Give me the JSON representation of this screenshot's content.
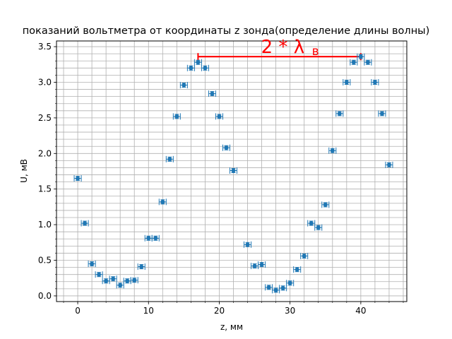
{
  "chart_data": {
    "type": "scatter",
    "title": "показаний вольтметра от координаты z зонда(определение длины волны)",
    "xlabel": "z, мм",
    "ylabel": "U, мВ",
    "xlim": [
      -3,
      46.5
    ],
    "ylim": [
      -0.08,
      3.58
    ],
    "grid": true,
    "minor_grid": true,
    "x_major_ticks": [
      0,
      10,
      20,
      30,
      40
    ],
    "y_major_ticks": [
      0.0,
      0.5,
      1.0,
      1.5,
      2.0,
      2.5,
      3.0,
      3.5
    ],
    "x_tick_labels": [
      "0",
      "10",
      "20",
      "30",
      "40"
    ],
    "y_tick_labels": [
      "0.0",
      "0.5",
      "1.0",
      "1.5",
      "2.0",
      "2.5",
      "3.0",
      "3.5"
    ],
    "x_minor_step": 2,
    "y_minor_step": 0.1,
    "series_color": "#1f77b4",
    "grid_color": "#b0b0b0",
    "x_error": 0.5,
    "y_error": 0.03,
    "points": [
      {
        "x": 0,
        "y": 1.65
      },
      {
        "x": 1,
        "y": 1.02
      },
      {
        "x": 2,
        "y": 0.45
      },
      {
        "x": 3,
        "y": 0.3
      },
      {
        "x": 4,
        "y": 0.21
      },
      {
        "x": 5,
        "y": 0.24
      },
      {
        "x": 6,
        "y": 0.15
      },
      {
        "x": 7,
        "y": 0.21
      },
      {
        "x": 8,
        "y": 0.22
      },
      {
        "x": 9,
        "y": 0.41
      },
      {
        "x": 10,
        "y": 0.81
      },
      {
        "x": 11,
        "y": 0.81
      },
      {
        "x": 12,
        "y": 1.32
      },
      {
        "x": 13,
        "y": 1.92
      },
      {
        "x": 14,
        "y": 2.52
      },
      {
        "x": 15,
        "y": 2.96
      },
      {
        "x": 16,
        "y": 3.2
      },
      {
        "x": 17,
        "y": 3.28
      },
      {
        "x": 18,
        "y": 3.2
      },
      {
        "x": 19,
        "y": 2.84
      },
      {
        "x": 20,
        "y": 2.52
      },
      {
        "x": 21,
        "y": 2.08
      },
      {
        "x": 22,
        "y": 1.76
      },
      {
        "x": 24,
        "y": 0.72
      },
      {
        "x": 25,
        "y": 0.42
      },
      {
        "x": 26,
        "y": 0.44
      },
      {
        "x": 27,
        "y": 0.12
      },
      {
        "x": 28,
        "y": 0.08
      },
      {
        "x": 29,
        "y": 0.11
      },
      {
        "x": 30,
        "y": 0.18
      },
      {
        "x": 31,
        "y": 0.37
      },
      {
        "x": 32,
        "y": 0.56
      },
      {
        "x": 33,
        "y": 1.02
      },
      {
        "x": 34,
        "y": 0.96
      },
      {
        "x": 35,
        "y": 1.28
      },
      {
        "x": 36,
        "y": 2.04
      },
      {
        "x": 37,
        "y": 2.56
      },
      {
        "x": 38,
        "y": 3.0
      },
      {
        "x": 39,
        "y": 3.28
      },
      {
        "x": 40,
        "y": 3.36
      },
      {
        "x": 41,
        "y": 3.28
      },
      {
        "x": 42,
        "y": 3.0
      },
      {
        "x": 43,
        "y": 2.56
      },
      {
        "x": 44,
        "y": 1.84
      }
    ],
    "annotation": {
      "text_main": "2 * λ",
      "text_sub": "в",
      "color": "#ff0000",
      "x_start": 17,
      "x_end": 40,
      "y": 3.36
    }
  }
}
